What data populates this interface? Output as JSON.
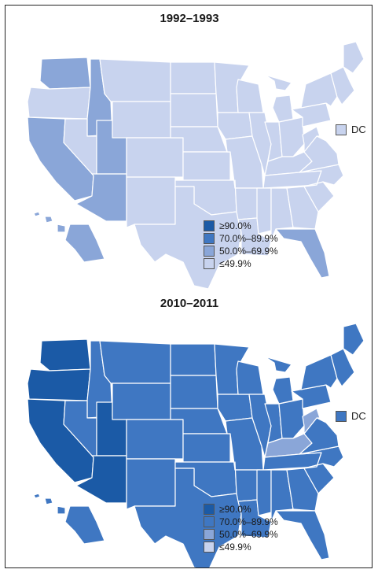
{
  "colors": {
    "ge90": "#1b5aa6",
    "p70_89": "#3f77c2",
    "p50_69": "#8aa6d8",
    "le49": "#c8d3ee"
  },
  "legend": [
    {
      "label": "≥90.0%",
      "level": "ge90"
    },
    {
      "label": "70.0%–89.9%",
      "level": "p70_89"
    },
    {
      "label": "50.0%–69.9%",
      "level": "p50_69"
    },
    {
      "label": "≤49.9%",
      "level": "le49"
    }
  ],
  "dc_label": "DC",
  "panels": [
    {
      "title": "1992–1993",
      "dc_level": "le49",
      "state_levels": {
        "WA": "p50_69",
        "OR": "le49",
        "CA": "p50_69",
        "ID": "p50_69",
        "NV": "le49",
        "UT": "p50_69",
        "AZ": "p50_69",
        "MT": "le49",
        "WY": "le49",
        "CO": "le49",
        "NM": "le49",
        "ND": "le49",
        "SD": "le49",
        "NE": "le49",
        "KS": "le49",
        "OK": "le49",
        "TX": "le49",
        "MN": "le49",
        "IA": "le49",
        "MO": "le49",
        "AR": "le49",
        "LA": "le49",
        "WI": "le49",
        "IL": "le49",
        "MI": "le49",
        "IN": "le49",
        "OH": "le49",
        "KY": "le49",
        "TN": "le49",
        "MS": "le49",
        "AL": "le49",
        "GA": "le49",
        "FL": "p50_69",
        "SC": "le49",
        "NC": "le49",
        "VA": "le49",
        "WV": "le49",
        "PA": "le49",
        "NY": "le49",
        "NE_STATES": "le49",
        "ME": "le49",
        "AK": "p50_69",
        "HI": "p50_69"
      }
    },
    {
      "title": "2010–2011",
      "dc_level": "p70_89",
      "state_levels": {
        "WA": "ge90",
        "OR": "ge90",
        "CA": "ge90",
        "ID": "p70_89",
        "NV": "p70_89",
        "UT": "ge90",
        "AZ": "ge90",
        "MT": "p70_89",
        "WY": "p70_89",
        "CO": "p70_89",
        "NM": "p70_89",
        "ND": "p70_89",
        "SD": "p70_89",
        "NE": "p70_89",
        "KS": "p70_89",
        "OK": "p70_89",
        "TX": "p70_89",
        "MN": "p70_89",
        "IA": "p70_89",
        "MO": "p70_89",
        "AR": "p70_89",
        "LA": "p70_89",
        "WI": "p70_89",
        "IL": "p70_89",
        "MI": "p70_89",
        "IN": "p70_89",
        "OH": "p70_89",
        "KY": "p50_69",
        "TN": "p70_89",
        "MS": "p70_89",
        "AL": "p70_89",
        "GA": "p70_89",
        "FL": "p70_89",
        "SC": "p70_89",
        "NC": "p70_89",
        "VA": "p70_89",
        "WV": "p50_69",
        "PA": "p70_89",
        "NY": "p70_89",
        "NE_STATES": "p70_89",
        "ME": "p70_89",
        "AK": "p70_89",
        "HI": "p70_89"
      }
    }
  ]
}
